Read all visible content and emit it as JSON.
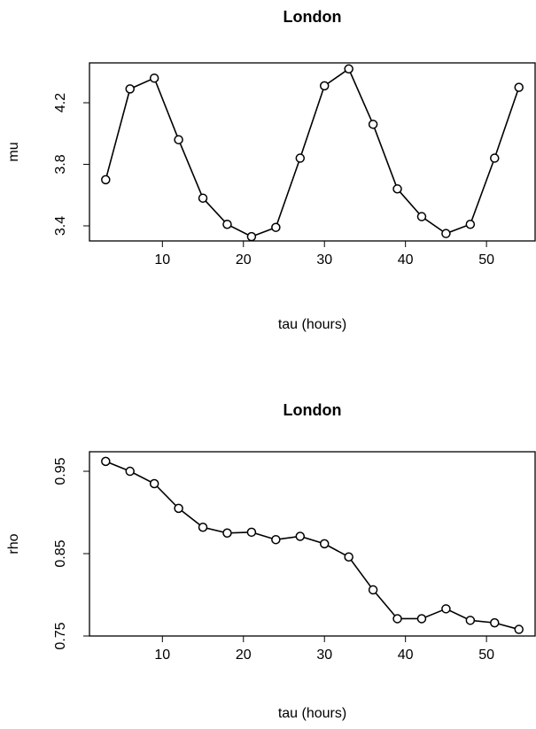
{
  "chart_data": [
    {
      "type": "line",
      "title": "London",
      "x_label": "tau (hours)",
      "y_label": "mu",
      "color": "#000000",
      "x": [
        3,
        6,
        9,
        12,
        15,
        18,
        21,
        24,
        27,
        30,
        33,
        36,
        39,
        42,
        45,
        48,
        51,
        54
      ],
      "values": [
        3.7,
        4.29,
        4.36,
        3.96,
        3.58,
        3.41,
        3.33,
        3.39,
        3.84,
        4.31,
        4.42,
        4.06,
        3.64,
        3.46,
        3.35,
        3.41,
        3.84,
        4.3
      ],
      "xlim": [
        1,
        56
      ],
      "xticks": [
        10,
        20,
        30,
        40,
        50
      ],
      "ylim": [
        3.302,
        4.459
      ],
      "yticks": [
        3.4,
        3.8,
        4.2
      ]
    },
    {
      "type": "line",
      "title": "London",
      "x_label": "tau (hours)",
      "y_label": "rho",
      "color": "#000000",
      "x": [
        3,
        6,
        9,
        12,
        15,
        18,
        21,
        24,
        27,
        30,
        33,
        36,
        39,
        42,
        45,
        48,
        51,
        54
      ],
      "values": [
        0.962,
        0.95,
        0.935,
        0.905,
        0.882,
        0.875,
        0.876,
        0.867,
        0.871,
        0.862,
        0.846,
        0.806,
        0.771,
        0.771,
        0.783,
        0.769,
        0.766,
        0.758
      ],
      "xlim": [
        1,
        56
      ],
      "xticks": [
        10,
        20,
        30,
        40,
        50
      ],
      "ylim": [
        0.75,
        0.9737
      ],
      "yticks": [
        0.75,
        0.85,
        0.95
      ]
    }
  ]
}
